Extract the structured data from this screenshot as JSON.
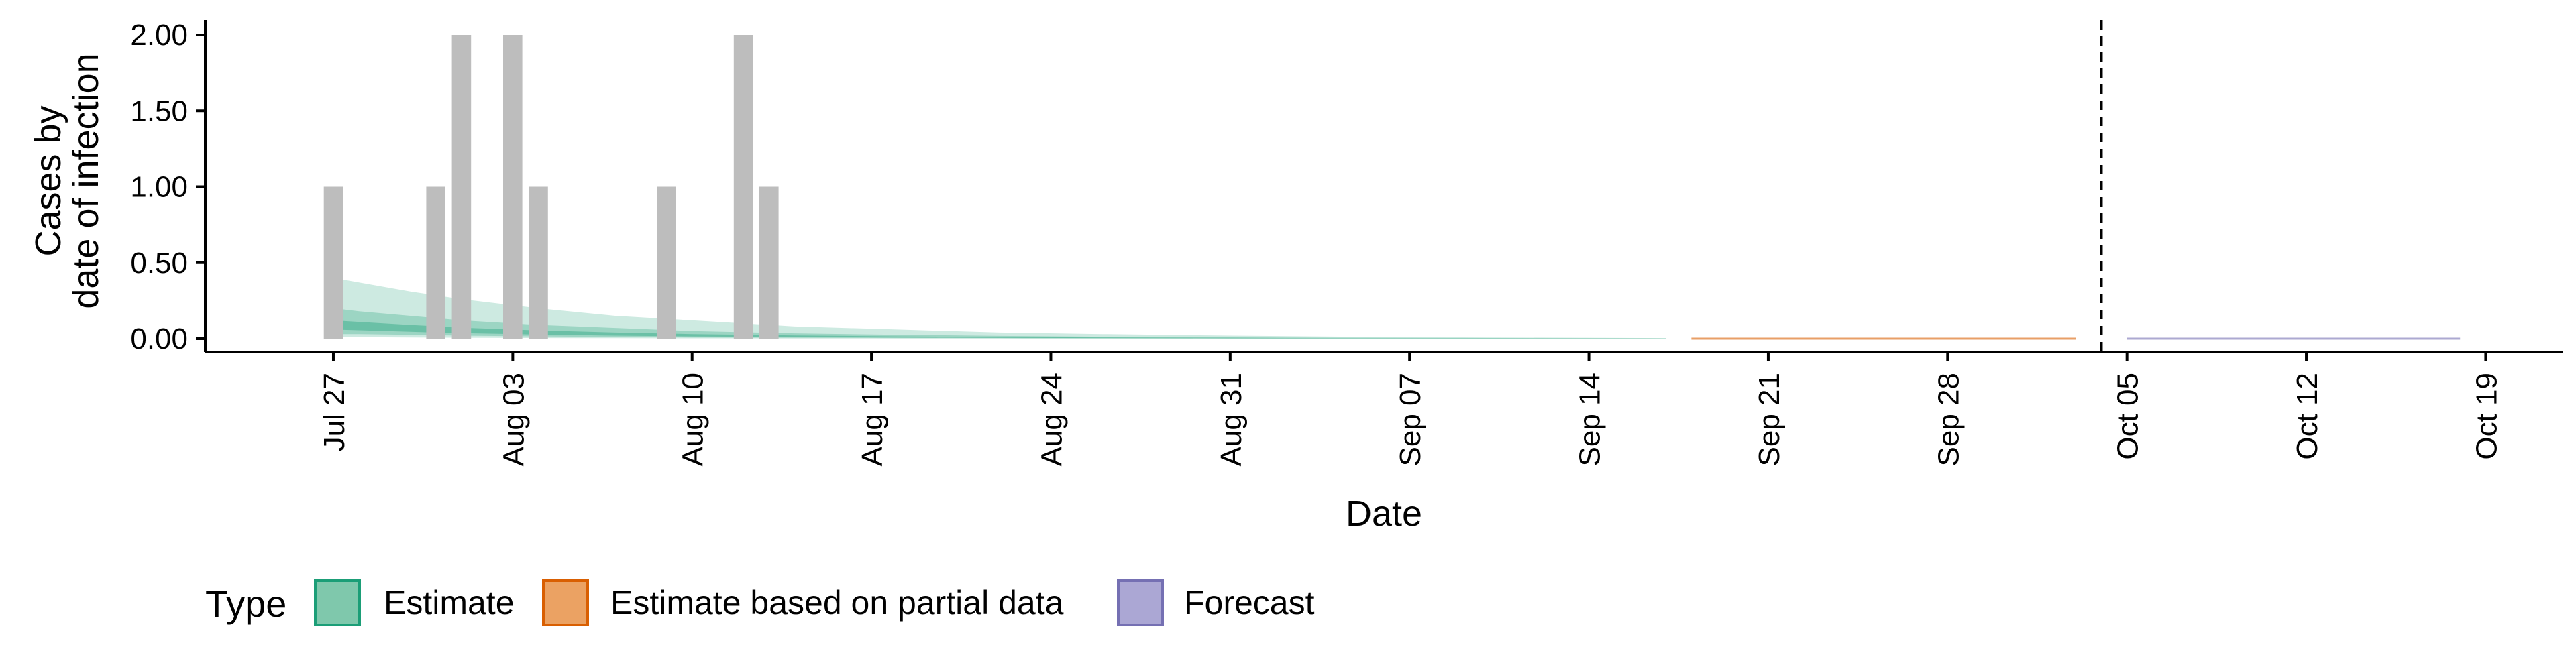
{
  "chart_data": {
    "type": "bar",
    "title": "",
    "xlabel": "Date",
    "ylabel": [
      "Cases by",
      "date of infection"
    ],
    "ylim": [
      0,
      2.1
    ],
    "y_ticks": [
      0,
      0.5,
      1,
      1.5,
      2
    ],
    "y_tick_labels": [
      "0.00",
      "0.50",
      "1.00",
      "1.50",
      "2.00"
    ],
    "x_tick_dates": [
      "2020-07-27",
      "2020-08-03",
      "2020-08-10",
      "2020-08-17",
      "2020-08-24",
      "2020-08-31",
      "2020-09-07",
      "2020-09-14",
      "2020-09-21",
      "2020-09-28",
      "2020-10-05",
      "2020-10-12",
      "2020-10-19"
    ],
    "x_tick_labels": [
      "Jul 27",
      "Aug 03",
      "Aug 10",
      "Aug 17",
      "Aug 24",
      "Aug 31",
      "Sep 07",
      "Sep 14",
      "Sep 21",
      "Sep 28",
      "Oct 05",
      "Oct 12",
      "Oct 19"
    ],
    "xlim": [
      "2020-07-22",
      "2020-10-22"
    ],
    "bars": [
      {
        "date": "2020-07-27",
        "value": 1
      },
      {
        "date": "2020-07-31",
        "value": 1
      },
      {
        "date": "2020-08-01",
        "value": 2
      },
      {
        "date": "2020-08-03",
        "value": 2
      },
      {
        "date": "2020-08-04",
        "value": 1
      },
      {
        "date": "2020-08-09",
        "value": 1
      },
      {
        "date": "2020-08-12",
        "value": 2
      },
      {
        "date": "2020-08-13",
        "value": 1
      }
    ],
    "estimate_bands": {
      "dates": [
        "2020-07-27",
        "2020-07-28",
        "2020-07-30",
        "2020-08-01",
        "2020-08-04",
        "2020-08-07",
        "2020-08-10",
        "2020-08-14",
        "2020-08-18",
        "2020-08-22",
        "2020-08-26",
        "2020-08-31",
        "2020-09-05",
        "2020-09-10",
        "2020-09-17"
      ],
      "outer_upper": [
        0.4,
        0.37,
        0.31,
        0.26,
        0.2,
        0.15,
        0.12,
        0.08,
        0.06,
        0.04,
        0.03,
        0.02,
        0.012,
        0.008,
        0.004
      ],
      "outer_lower": [
        0.01,
        0.01,
        0.008,
        0.006,
        0.004,
        0.003,
        0.002,
        0.0015,
        0.001,
        0.0008,
        0.0006,
        0.0004,
        0.0003,
        0.0002,
        0.0001
      ],
      "mid_upper": [
        0.2,
        0.18,
        0.15,
        0.12,
        0.09,
        0.07,
        0.05,
        0.035,
        0.025,
        0.018,
        0.013,
        0.009,
        0.006,
        0.004,
        0.002
      ],
      "mid_lower": [
        0.03,
        0.03,
        0.025,
        0.02,
        0.015,
        0.011,
        0.008,
        0.006,
        0.004,
        0.003,
        0.002,
        0.0015,
        0.001,
        0.0007,
        0.0004
      ],
      "inner_upper": [
        0.12,
        0.11,
        0.09,
        0.072,
        0.054,
        0.04,
        0.03,
        0.021,
        0.015,
        0.011,
        0.008,
        0.0055,
        0.0037,
        0.0025,
        0.0013
      ],
      "inner_lower": [
        0.06,
        0.055,
        0.045,
        0.036,
        0.027,
        0.02,
        0.015,
        0.011,
        0.008,
        0.0055,
        0.004,
        0.0028,
        0.0019,
        0.0013,
        0.0007
      ]
    },
    "partial_data_segment": {
      "start": "2020-09-18",
      "end": "2020-10-03",
      "value": 0.0
    },
    "forecast_segment": {
      "start": "2020-10-05",
      "end": "2020-10-18",
      "value": 0.0
    },
    "vline_date": "2020-10-04",
    "legend": {
      "title": "Type",
      "position": "bottom-left",
      "items": [
        "Estimate",
        "Estimate based on partial data",
        "Forecast"
      ]
    }
  },
  "colors": {
    "bars": "#bdbdbd",
    "estimate": "#1b9e77",
    "estimate_fill": "#7fc8ac",
    "partial": "#d95f02",
    "partial_fill": "#eba263",
    "forecast": "#7570b3",
    "forecast_fill": "#aba7d4"
  }
}
